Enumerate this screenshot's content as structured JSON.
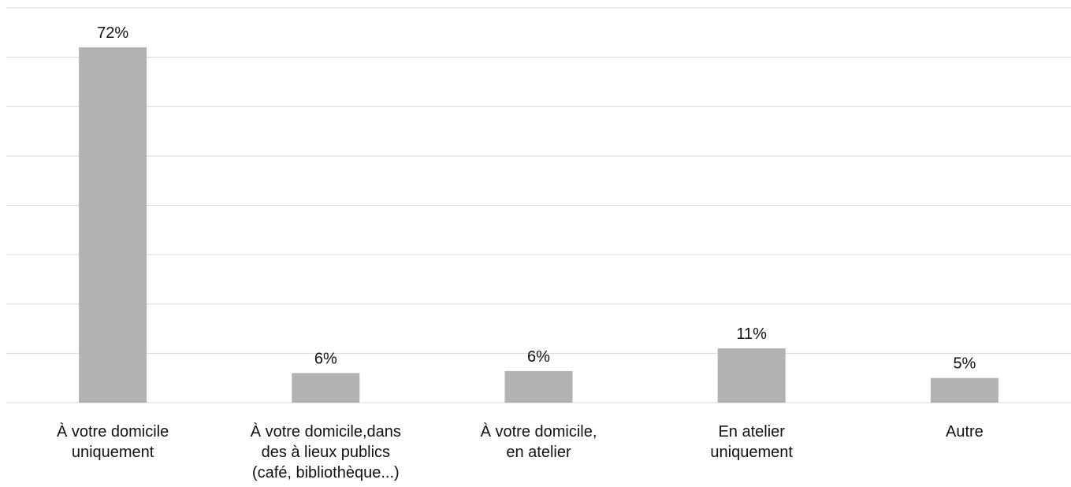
{
  "chart_data": {
    "type": "bar",
    "categories": [
      "À votre domicile\nuniquement",
      "À votre domicile,dans\ndes à lieux publics\n(café, bibliothèque...)",
      "À votre domicile,\nen atelier",
      "En atelier\nuniquement",
      "Autre"
    ],
    "values": [
      72,
      6,
      6.4,
      11,
      5
    ],
    "value_labels": [
      "72%",
      "6%",
      "6%",
      "11%",
      "5%"
    ],
    "color": "#b1b2b4",
    "ylim": [
      0,
      80
    ],
    "yticks": [
      0,
      10,
      20,
      30,
      40,
      50,
      60,
      70,
      80
    ],
    "grid": true
  }
}
